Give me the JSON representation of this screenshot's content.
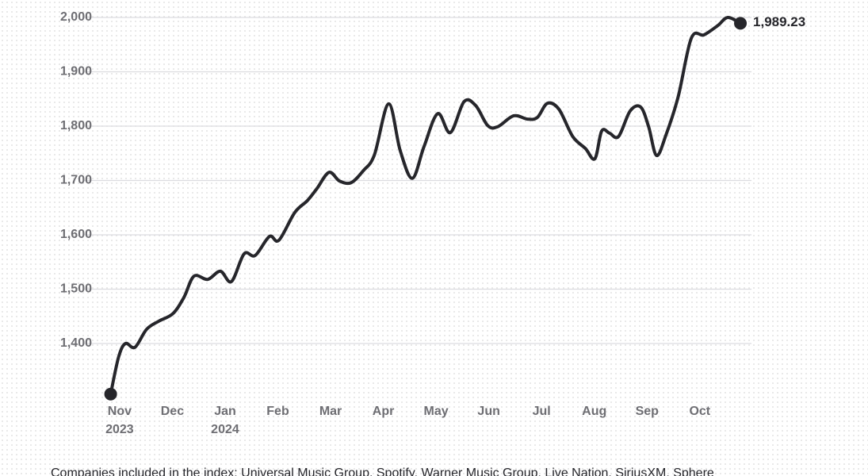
{
  "chart_data": {
    "type": "line",
    "note": "Companies included in the index: Universal Music Group, Spotify, Warner Music Group, Live Nation, SiriusXM, Sphere",
    "xlim": [
      -0.69,
      11.98
    ],
    "xticks": [
      {
        "value": 0,
        "label": "Nov",
        "sublabel": "2023"
      },
      {
        "value": 1,
        "label": "Dec"
      },
      {
        "value": 2,
        "label": "Jan",
        "sublabel": "2024"
      },
      {
        "value": 3,
        "label": "Feb"
      },
      {
        "value": 4,
        "label": "Mar"
      },
      {
        "value": 5,
        "label": "Apr"
      },
      {
        "value": 6,
        "label": "May"
      },
      {
        "value": 7,
        "label": "Jun"
      },
      {
        "value": 8,
        "label": "Jul"
      },
      {
        "value": 9,
        "label": "Aug"
      },
      {
        "value": 10,
        "label": "Sep"
      },
      {
        "value": 11,
        "label": "Oct"
      }
    ],
    "ylim": [
      1300,
      2000
    ],
    "yticks": [
      {
        "value": 1400,
        "label": "1,400"
      },
      {
        "value": 1500,
        "label": "1,500"
      },
      {
        "value": 1600,
        "label": "1,600"
      },
      {
        "value": 1700,
        "label": "1,700"
      },
      {
        "value": 1800,
        "label": "1,800"
      },
      {
        "value": 1900,
        "label": "1,900"
      },
      {
        "value": 2000,
        "label": "2,000"
      }
    ],
    "grid": true,
    "series": [
      {
        "color": "#26262b",
        "x": [
          -0.17,
          -0.02,
          0.11,
          0.29,
          0.51,
          0.74,
          1.01,
          1.22,
          1.41,
          1.67,
          1.91,
          2.12,
          2.36,
          2.57,
          2.84,
          3.02,
          3.32,
          3.56,
          3.74,
          3.97,
          4.17,
          4.39,
          4.62,
          4.83,
          5.1,
          5.32,
          5.55,
          5.77,
          6.03,
          6.27,
          6.53,
          6.75,
          6.98,
          7.17,
          7.47,
          7.73,
          7.92,
          8.11,
          8.33,
          8.59,
          8.83,
          9.01,
          9.14,
          9.29,
          9.46,
          9.68,
          9.88,
          10.03,
          10.18,
          10.36,
          10.59,
          10.84,
          11.08,
          11.34,
          11.53,
          11.77
        ],
        "values": [
          1307,
          1375,
          1400,
          1393,
          1426,
          1441,
          1455,
          1485,
          1524,
          1518,
          1533,
          1514,
          1565,
          1562,
          1597,
          1590,
          1641,
          1663,
          1685,
          1715,
          1699,
          1696,
          1718,
          1747,
          1841,
          1755,
          1704,
          1762,
          1823,
          1788,
          1845,
          1838,
          1801,
          1799,
          1819,
          1813,
          1816,
          1842,
          1831,
          1781,
          1759,
          1740,
          1791,
          1787,
          1781,
          1828,
          1835,
          1799,
          1746,
          1784,
          1854,
          1962,
          1968,
          1985,
          2000,
          1989.23
        ],
        "value_labels": [
          null,
          null,
          null,
          null,
          null,
          null,
          null,
          null,
          null,
          null,
          null,
          null,
          null,
          null,
          null,
          null,
          null,
          null,
          null,
          null,
          null,
          null,
          null,
          null,
          null,
          null,
          null,
          null,
          null,
          null,
          null,
          null,
          null,
          null,
          null,
          null,
          null,
          null,
          null,
          null,
          null,
          null,
          null,
          null,
          null,
          null,
          null,
          null,
          null,
          null,
          null,
          null,
          null,
          null,
          null,
          "1,989.23"
        ]
      }
    ]
  }
}
